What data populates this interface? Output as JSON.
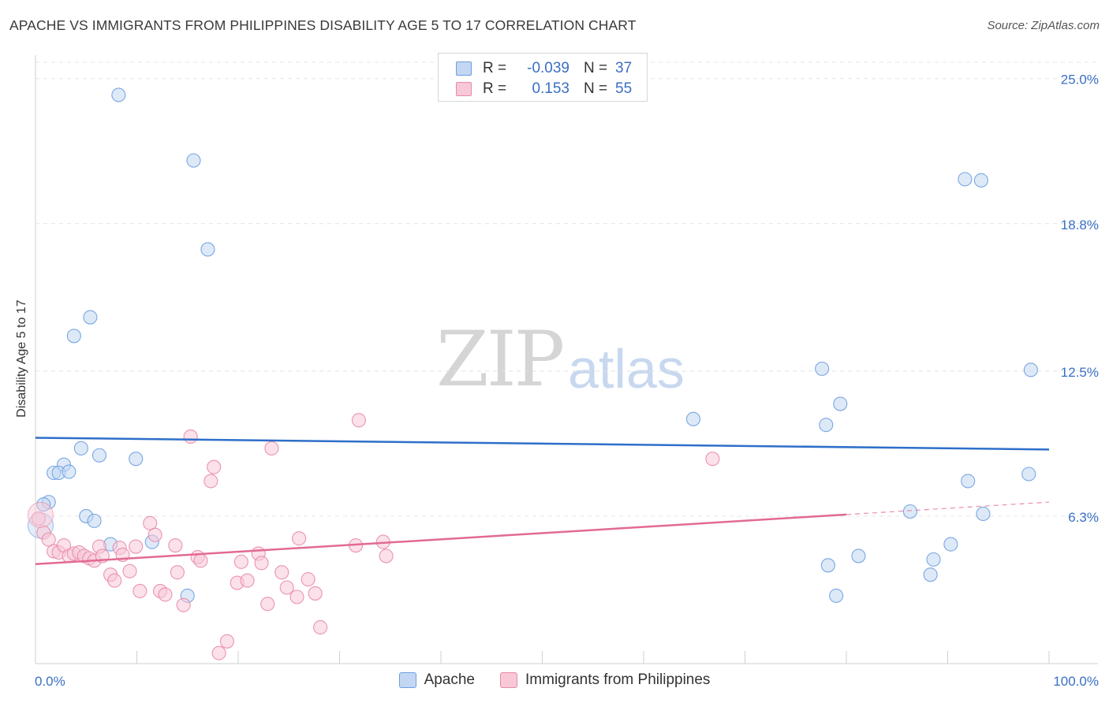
{
  "header": {
    "title": "APACHE VS IMMIGRANTS FROM PHILIPPINES DISABILITY AGE 5 TO 17 CORRELATION CHART",
    "source": "Source: ZipAtlas.com"
  },
  "watermark": {
    "zip": "ZIP",
    "atlas": "atlas"
  },
  "legend": {
    "rows": [
      {
        "r_label": "R =",
        "r_value": "-0.039",
        "n_label": "N =",
        "n_value": "37"
      },
      {
        "r_label": "R =",
        "r_value": "0.153",
        "n_label": "N =",
        "n_value": "55"
      }
    ]
  },
  "colors": {
    "apache": "#6a9fe0",
    "apache_fill": "#c3d7f3",
    "apache_line": "#2e6fc9",
    "philippines": "#e98aa8",
    "philippines_fill": "#f8c8d7",
    "philippines_line": "#e26a93",
    "tick_label": "#3a6fc4"
  },
  "chart_data": {
    "type": "scatter",
    "xlabel": "",
    "ylabel": "Disability Age 5 to 17",
    "xlim": [
      0,
      100
    ],
    "ylim": [
      0,
      25.6
    ],
    "x_ticks": [
      "0.0%",
      "100.0%"
    ],
    "y_ticks": [
      {
        "value": 6.3,
        "label": "6.3%"
      },
      {
        "value": 12.5,
        "label": "12.5%"
      },
      {
        "value": 18.8,
        "label": "18.8%"
      },
      {
        "value": 25.0,
        "label": "25.0%"
      }
    ],
    "grid": true,
    "legend_position": "top-center",
    "series": [
      {
        "name": "Apache",
        "trend": {
          "x0": 0,
          "y0": 9.65,
          "x1": 100,
          "y1": 9.15,
          "solid_until": 100
        },
        "points": [
          [
            8.2,
            24.3
          ],
          [
            15.6,
            21.5
          ],
          [
            17.0,
            17.7
          ],
          [
            5.4,
            14.8
          ],
          [
            3.8,
            14.0
          ],
          [
            4.5,
            9.2
          ],
          [
            6.3,
            8.9
          ],
          [
            9.9,
            8.75
          ],
          [
            2.8,
            8.5
          ],
          [
            1.8,
            8.15
          ],
          [
            2.3,
            8.15
          ],
          [
            3.3,
            8.2
          ],
          [
            1.3,
            6.9
          ],
          [
            0.8,
            6.8
          ],
          [
            5.0,
            6.3
          ],
          [
            5.8,
            6.1
          ],
          [
            7.4,
            5.1
          ],
          [
            11.5,
            5.2
          ],
          [
            15.0,
            2.9
          ],
          [
            0.5,
            5.9
          ],
          [
            64.9,
            10.45
          ],
          [
            77.6,
            12.6
          ],
          [
            79.4,
            11.1
          ],
          [
            78.0,
            10.2
          ],
          [
            98.2,
            12.55
          ],
          [
            91.7,
            20.7
          ],
          [
            93.3,
            20.65
          ],
          [
            92.0,
            7.8
          ],
          [
            98.0,
            8.1
          ],
          [
            86.3,
            6.5
          ],
          [
            93.5,
            6.4
          ],
          [
            90.3,
            5.1
          ],
          [
            81.2,
            4.6
          ],
          [
            78.2,
            4.2
          ],
          [
            88.6,
            4.45
          ],
          [
            88.3,
            3.8
          ],
          [
            79.0,
            2.9
          ]
        ]
      },
      {
        "name": "Immigrants from Philippines",
        "trend": {
          "x0": 0,
          "y0": 4.25,
          "x1": 100,
          "y1": 6.9,
          "solid_until": 80
        },
        "points": [
          [
            0.3,
            6.2
          ],
          [
            0.8,
            5.6
          ],
          [
            1.3,
            5.3
          ],
          [
            1.8,
            4.8
          ],
          [
            2.3,
            4.75
          ],
          [
            2.8,
            5.05
          ],
          [
            3.3,
            4.6
          ],
          [
            3.8,
            4.7
          ],
          [
            4.3,
            4.75
          ],
          [
            4.8,
            4.6
          ],
          [
            5.3,
            4.5
          ],
          [
            5.8,
            4.4
          ],
          [
            6.3,
            5.0
          ],
          [
            6.6,
            4.6
          ],
          [
            7.4,
            3.8
          ],
          [
            7.8,
            3.55
          ],
          [
            8.3,
            4.95
          ],
          [
            8.6,
            4.65
          ],
          [
            9.3,
            3.95
          ],
          [
            9.9,
            5.0
          ],
          [
            10.3,
            3.1
          ],
          [
            11.3,
            6.0
          ],
          [
            11.8,
            5.5
          ],
          [
            12.3,
            3.1
          ],
          [
            12.8,
            2.95
          ],
          [
            13.8,
            5.05
          ],
          [
            14.0,
            3.9
          ],
          [
            14.6,
            2.5
          ],
          [
            15.3,
            9.7
          ],
          [
            16.0,
            4.55
          ],
          [
            16.3,
            4.4
          ],
          [
            17.3,
            7.8
          ],
          [
            17.6,
            8.4
          ],
          [
            18.1,
            0.45
          ],
          [
            18.9,
            0.95
          ],
          [
            19.9,
            3.45
          ],
          [
            20.3,
            4.35
          ],
          [
            20.9,
            3.55
          ],
          [
            22.0,
            4.7
          ],
          [
            22.3,
            4.3
          ],
          [
            22.9,
            2.55
          ],
          [
            23.3,
            9.2
          ],
          [
            24.3,
            3.9
          ],
          [
            24.8,
            3.25
          ],
          [
            25.8,
            2.85
          ],
          [
            26.0,
            5.35
          ],
          [
            26.9,
            3.6
          ],
          [
            27.6,
            3.0
          ],
          [
            28.1,
            1.55
          ],
          [
            31.6,
            5.05
          ],
          [
            31.9,
            10.4
          ],
          [
            34.3,
            5.2
          ],
          [
            34.6,
            4.6
          ],
          [
            66.8,
            8.75
          ],
          [
            0.5,
            6.35
          ]
        ]
      }
    ]
  }
}
